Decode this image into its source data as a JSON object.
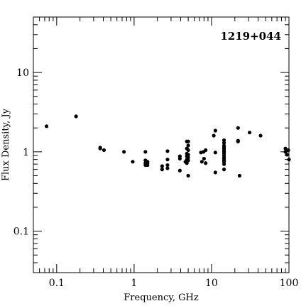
{
  "chart_data": {
    "type": "scatter",
    "title": "1219+044",
    "xlabel": "Frequency, GHz",
    "ylabel": "Flux Density, Jy",
    "x_scale": "log",
    "y_scale": "log",
    "xlim": [
      0.05,
      100
    ],
    "ylim": [
      0.03,
      50
    ],
    "x_major_ticks": [
      0.1,
      1,
      10,
      100
    ],
    "x_tick_labels": [
      "0.1",
      "1",
      "10",
      "100"
    ],
    "y_major_ticks": [
      0.1,
      1,
      10
    ],
    "y_tick_labels": [
      "0.1",
      "1",
      "10"
    ],
    "grid": false,
    "point_color": "#000000",
    "series": [
      {
        "points": [
          [
            0.074,
            2.1
          ],
          [
            0.178,
            2.8
          ],
          [
            0.365,
            1.13
          ],
          [
            0.365,
            1.1
          ],
          [
            0.408,
            1.05
          ],
          [
            0.74,
            1.0
          ],
          [
            0.96,
            0.75
          ],
          [
            1.4,
            1.0
          ],
          [
            1.4,
            0.78
          ],
          [
            1.4,
            0.72
          ],
          [
            1.4,
            0.68
          ],
          [
            1.49,
            0.75
          ],
          [
            1.49,
            0.68
          ],
          [
            1.49,
            0.72
          ],
          [
            2.3,
            0.66
          ],
          [
            2.3,
            0.6
          ],
          [
            2.7,
            1.02
          ],
          [
            2.7,
            0.8
          ],
          [
            2.7,
            0.68
          ],
          [
            2.7,
            0.62
          ],
          [
            3.9,
            0.88
          ],
          [
            3.9,
            0.82
          ],
          [
            3.9,
            0.58
          ],
          [
            4.6,
            0.75
          ],
          [
            4.8,
            1.35
          ],
          [
            4.8,
            1.1
          ],
          [
            4.8,
            0.95
          ],
          [
            4.8,
            0.88
          ],
          [
            4.8,
            0.8
          ],
          [
            4.8,
            0.72
          ],
          [
            5.0,
            1.35
          ],
          [
            5.0,
            1.2
          ],
          [
            5.0,
            1.05
          ],
          [
            5.0,
            0.92
          ],
          [
            5.0,
            0.85
          ],
          [
            5.0,
            0.78
          ],
          [
            5.0,
            0.5
          ],
          [
            7.3,
            0.98
          ],
          [
            7.5,
            0.75
          ],
          [
            7.9,
            1.0
          ],
          [
            8.0,
            0.82
          ],
          [
            8.4,
            1.05
          ],
          [
            8.4,
            0.72
          ],
          [
            10.7,
            1.6
          ],
          [
            11.2,
            1.85
          ],
          [
            11.2,
            0.98
          ],
          [
            11.2,
            0.55
          ],
          [
            14.5,
            1.4
          ],
          [
            14.5,
            1.3
          ],
          [
            14.5,
            1.2
          ],
          [
            14.5,
            1.15
          ],
          [
            14.5,
            1.1
          ],
          [
            14.5,
            1.05
          ],
          [
            14.5,
            1.0
          ],
          [
            14.5,
            0.95
          ],
          [
            14.5,
            0.9
          ],
          [
            14.5,
            0.85
          ],
          [
            14.5,
            0.82
          ],
          [
            14.5,
            0.78
          ],
          [
            14.5,
            0.75
          ],
          [
            14.5,
            0.7
          ],
          [
            14.5,
            0.6
          ],
          [
            22.0,
            2.0
          ],
          [
            22.0,
            1.38
          ],
          [
            22.0,
            1.35
          ],
          [
            23.0,
            0.5
          ],
          [
            31.0,
            1.75
          ],
          [
            43.0,
            1.6
          ],
          [
            90.0,
            1.1
          ],
          [
            90.0,
            1.0
          ],
          [
            94.0,
            0.92
          ],
          [
            98.0,
            1.05
          ],
          [
            100.0,
            0.8
          ]
        ]
      }
    ]
  }
}
